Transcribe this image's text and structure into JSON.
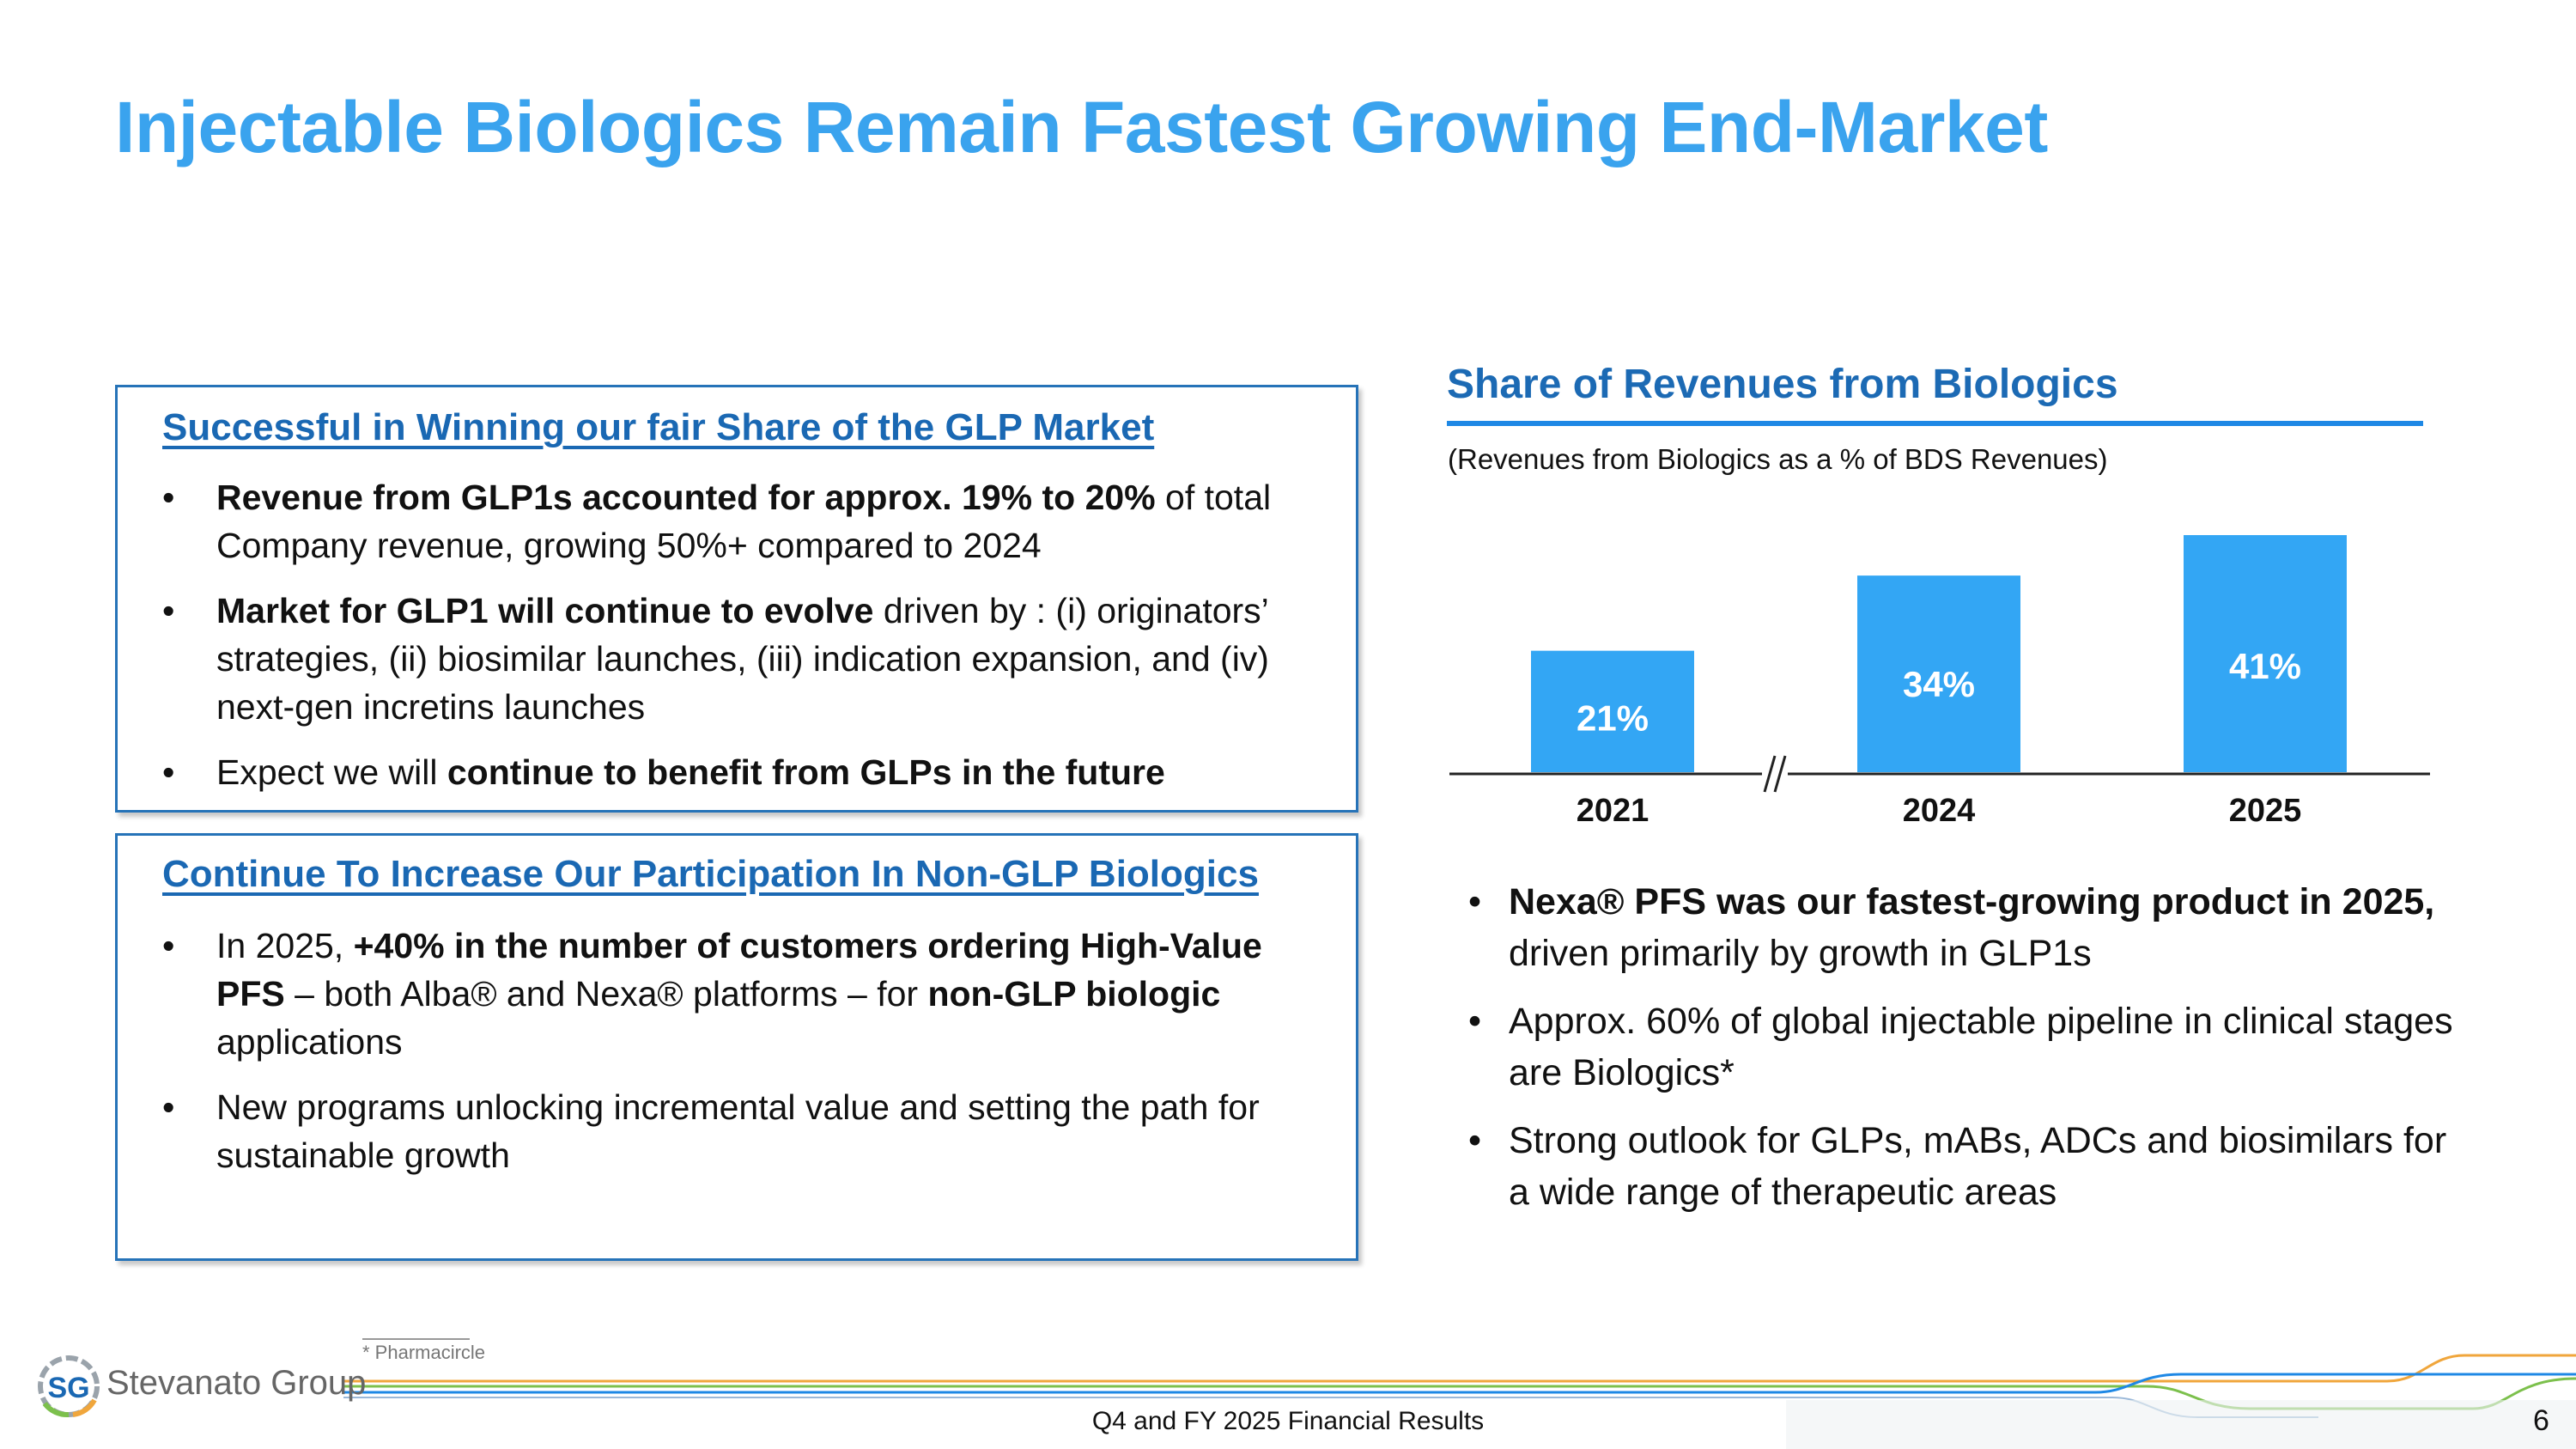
{
  "slide": {
    "title": "Injectable Biologics Remain Fastest Growing End-Market"
  },
  "box1": {
    "heading": "Successful in Winning our fair Share of the GLP Market",
    "bullets": [
      {
        "bold": "Revenue from GLP1s accounted for approx. 19% to 20%",
        "rest": " of total Company revenue, growing 50%+ compared to 2024"
      },
      {
        "bold": "Market for GLP1 will continue to evolve",
        "rest": " driven by : (i) originators’ strategies, (ii) biosimilar launches, (iii) indication expansion, and (iv) next-gen incretins launches"
      },
      {
        "pre": "Expect we will ",
        "bold": "continue to benefit from GLPs in the future"
      }
    ]
  },
  "box2": {
    "heading": "Continue To Increase Our Participation In Non-GLP Biologics",
    "bullets": [
      {
        "pre": "In 2025, ",
        "bold": "+40% in the number of customers ordering High-Value PFS",
        "mid": " – both Alba® and Nexa® platforms – for ",
        "bold2": "non-GLP biologic",
        "rest": " applications"
      },
      {
        "pre": "New programs unlocking incremental value and setting the path for sustainable growth"
      }
    ]
  },
  "chart_data": {
    "type": "bar",
    "title": "Share of Revenues from Biologics",
    "subtitle": "(Revenues from Biologics as a % of BDS Revenues)",
    "categories": [
      "2021",
      "2024",
      "2025"
    ],
    "values": [
      21,
      34,
      41
    ],
    "data_labels": [
      "21%",
      "34%",
      "41%"
    ],
    "unit": "%",
    "axis_break": "//",
    "ylim": [
      0,
      41
    ],
    "bar_color": "#33a6f4"
  },
  "right_bullets": [
    {
      "bold": "Nexa® PFS was our fastest-growing product in 2025,",
      "rest": " driven primarily by growth in GLP1s"
    },
    {
      "pre": "Approx. 60% of global injectable pipeline in clinical stages are Biologics*"
    },
    {
      "pre": "Strong outlook for GLPs, mABs, ADCs and biosimilars for a wide range of therapeutic areas"
    }
  ],
  "bullet_glyph": "•",
  "footer": {
    "footnote": "* Pharmacircle",
    "center_text": "Q4 and FY 2025 Financial Results",
    "page_number": "6",
    "logo_name": "Stevanato Group",
    "logo_mark": "SG"
  },
  "colors": {
    "title": "#3aa3ee",
    "heading": "#1a68b3",
    "box_border": "#2673b8",
    "accent_line_orange": "#f0a63c",
    "accent_line_green": "#7cc04c",
    "accent_line_blue": "#1e88e5"
  }
}
